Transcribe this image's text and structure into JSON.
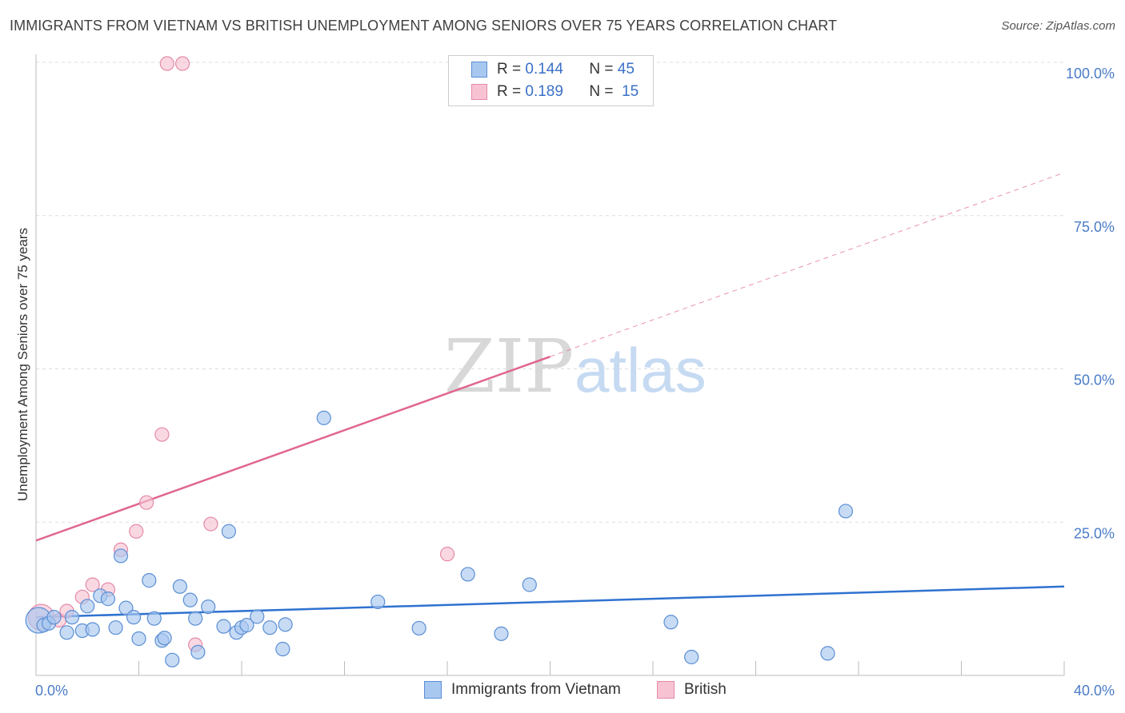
{
  "title": "IMMIGRANTS FROM VIETNAM VS BRITISH UNEMPLOYMENT AMONG SENIORS OVER 75 YEARS CORRELATION CHART",
  "source": "Source: ZipAtlas.com",
  "watermark": {
    "zip": "ZIP",
    "atlas": "atlas"
  },
  "legend": {
    "vietnam": {
      "r_label": "R =",
      "r_value": "0.144",
      "n_label": "N =",
      "n_value": "45"
    },
    "british": {
      "r_label": "R =",
      "r_value": "0.189",
      "n_label": "N =",
      "n_value": "15"
    }
  },
  "bottom_legend": {
    "vietnam": "Immigrants from Vietnam",
    "british": "British"
  },
  "colors": {
    "vietnam_fill": "#a9c8f0",
    "vietnam_stroke": "#5b8fd4",
    "vietnam_line": "#2f72d0",
    "british_fill": "#f7c3d3",
    "british_stroke": "#e58aa8",
    "british_line": "#e06590",
    "grid": "#dddddd",
    "tick_text": "#4a7cc8"
  },
  "chart_data": {
    "type": "scatter",
    "title": "IMMIGRANTS FROM VIETNAM VS BRITISH UNEMPLOYMENT AMONG SENIORS OVER 75 YEARS CORRELATION CHART",
    "xlabel": "",
    "ylabel": "Unemployment Among Seniors over 75 years",
    "xlim": [
      0,
      40
    ],
    "ylim": [
      0,
      100
    ],
    "x_tick_labels": [
      "0.0%",
      "40.0%"
    ],
    "y_tick_labels": [
      {
        "value": 25,
        "label": "25.0%"
      },
      {
        "value": 50,
        "label": "50.0%"
      },
      {
        "value": 75,
        "label": "75.0%"
      },
      {
        "value": 100,
        "label": "100.0%"
      }
    ],
    "series": [
      {
        "name": "Immigrants from Vietnam",
        "r": 0.144,
        "n": 45,
        "trend": {
          "x0": 0,
          "y0": 9.5,
          "x1": 40,
          "y1": 14.5,
          "dashed_from": null
        },
        "points": [
          {
            "x": 0.1,
            "y": 9,
            "big": true
          },
          {
            "x": 0.3,
            "y": 8.2
          },
          {
            "x": 0.5,
            "y": 8.5
          },
          {
            "x": 0.7,
            "y": 9.5
          },
          {
            "x": 1.2,
            "y": 7
          },
          {
            "x": 1.4,
            "y": 9.5
          },
          {
            "x": 1.8,
            "y": 7.3
          },
          {
            "x": 2.0,
            "y": 11.3
          },
          {
            "x": 2.2,
            "y": 7.5
          },
          {
            "x": 2.5,
            "y": 13
          },
          {
            "x": 2.8,
            "y": 12.5
          },
          {
            "x": 3.1,
            "y": 7.8
          },
          {
            "x": 3.3,
            "y": 19.5
          },
          {
            "x": 3.5,
            "y": 11
          },
          {
            "x": 3.8,
            "y": 9.5
          },
          {
            "x": 4.0,
            "y": 6
          },
          {
            "x": 4.4,
            "y": 15.5
          },
          {
            "x": 4.6,
            "y": 9.3
          },
          {
            "x": 4.9,
            "y": 5.7
          },
          {
            "x": 5.0,
            "y": 6.1
          },
          {
            "x": 5.3,
            "y": 2.5
          },
          {
            "x": 5.6,
            "y": 14.5
          },
          {
            "x": 6.0,
            "y": 12.3
          },
          {
            "x": 6.2,
            "y": 9.3
          },
          {
            "x": 6.3,
            "y": 3.8
          },
          {
            "x": 6.7,
            "y": 11.2
          },
          {
            "x": 7.3,
            "y": 8
          },
          {
            "x": 7.5,
            "y": 23.5
          },
          {
            "x": 7.8,
            "y": 7
          },
          {
            "x": 8.0,
            "y": 7.8
          },
          {
            "x": 8.2,
            "y": 8.2
          },
          {
            "x": 8.6,
            "y": 9.6
          },
          {
            "x": 9.1,
            "y": 7.8
          },
          {
            "x": 9.6,
            "y": 4.3
          },
          {
            "x": 9.7,
            "y": 8.3
          },
          {
            "x": 11.2,
            "y": 42
          },
          {
            "x": 13.3,
            "y": 12
          },
          {
            "x": 14.9,
            "y": 7.7
          },
          {
            "x": 16.8,
            "y": 16.5
          },
          {
            "x": 18.1,
            "y": 6.8
          },
          {
            "x": 19.2,
            "y": 14.8
          },
          {
            "x": 24.7,
            "y": 8.7
          },
          {
            "x": 25.5,
            "y": 3
          },
          {
            "x": 30.8,
            "y": 3.6
          },
          {
            "x": 31.5,
            "y": 26.8
          }
        ]
      },
      {
        "name": "British",
        "r": 0.189,
        "n": 15,
        "trend": {
          "x0": 0,
          "y0": 22,
          "x1": 40,
          "y1": 82,
          "solid_until": 20
        },
        "points": [
          {
            "x": 0.2,
            "y": 9.5,
            "big": true
          },
          {
            "x": 0.9,
            "y": 9
          },
          {
            "x": 1.2,
            "y": 10.5
          },
          {
            "x": 1.8,
            "y": 12.8
          },
          {
            "x": 2.2,
            "y": 14.8
          },
          {
            "x": 2.8,
            "y": 14
          },
          {
            "x": 3.3,
            "y": 20.5
          },
          {
            "x": 3.9,
            "y": 23.5
          },
          {
            "x": 4.3,
            "y": 28.2
          },
          {
            "x": 4.9,
            "y": 39.3
          },
          {
            "x": 5.1,
            "y": 99.8
          },
          {
            "x": 5.7,
            "y": 99.8
          },
          {
            "x": 6.2,
            "y": 5
          },
          {
            "x": 6.8,
            "y": 24.7
          },
          {
            "x": 16.0,
            "y": 19.8
          }
        ]
      }
    ]
  }
}
